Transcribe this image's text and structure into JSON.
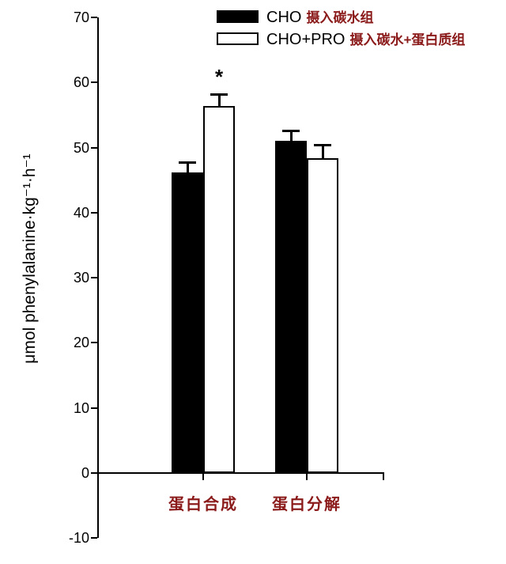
{
  "figure": {
    "background": "#ffffff",
    "accent_red": "#8b1a1a",
    "bar_black": "#000000",
    "bar_white": "#ffffff"
  },
  "legend": {
    "items": [
      {
        "label_en": "CHO",
        "label_zh": "摄入碳水组",
        "swatch_color": "#000000"
      },
      {
        "label_en": "CHO+PRO",
        "label_zh": "摄入碳水+蛋白质组",
        "swatch_color": "#ffffff"
      }
    ]
  },
  "chart_data": {
    "type": "bar",
    "title": "",
    "xlabel": "",
    "ylabel": "μmol phenylalanine·kg⁻¹·h⁻¹",
    "ylim": [
      -10,
      70
    ],
    "yticks": [
      70,
      60,
      50,
      40,
      30,
      20,
      10,
      0,
      -10
    ],
    "categories": [
      "蛋白合成",
      "蛋白分解"
    ],
    "series": [
      {
        "name": "CHO",
        "fill": "#000000",
        "values": [
          46.2,
          51.0
        ],
        "errors": [
          1.5,
          1.6
        ]
      },
      {
        "name": "CHO+PRO",
        "fill": "#ffffff",
        "values": [
          56.4,
          48.4
        ],
        "errors": [
          1.8,
          2.0
        ]
      }
    ],
    "error_bars": "upper-cap",
    "annotations": [
      {
        "text": "*",
        "category": "蛋白合成",
        "series": "CHO+PRO"
      }
    ],
    "grid": false,
    "legend_position": "top-right"
  }
}
